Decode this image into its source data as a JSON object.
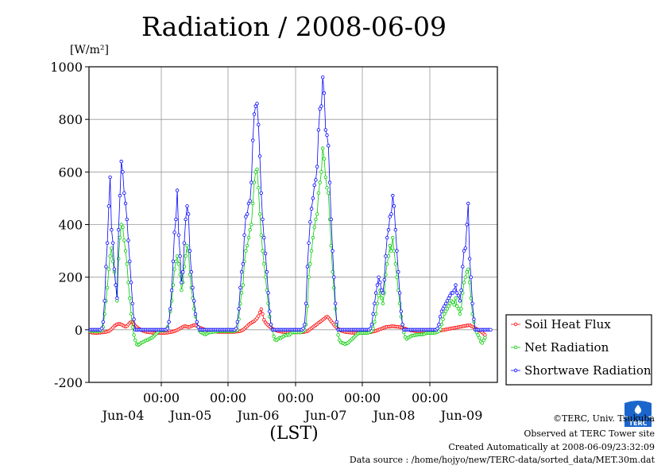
{
  "title": "Radiation / 2008-06-09",
  "unit_label": "[W/m²]",
  "x_axis_label": "(LST)",
  "credits": {
    "copyright": "©TERC, Univ. Tsukuba",
    "site": "Observed at TERC Tower site",
    "created": "Created Automatically at 2008-06-09/23:32:09",
    "source": "Data source : /home/hojyo/new/TERC-data/sorted_data/MET.30m.dat"
  },
  "logo_text": "TERC",
  "chart_data": {
    "type": "line",
    "title": "Radiation / 2008-06-09",
    "ylabel": "[W/m²]",
    "xlabel": "(LST)",
    "ylim": [
      -200,
      1000
    ],
    "y_ticks": [
      -200,
      0,
      200,
      400,
      600,
      800,
      1000
    ],
    "x_ticks": [
      "00:00",
      "00:00",
      "00:00",
      "00:00",
      "00:00",
      "00:00"
    ],
    "day_labels": [
      "Jun-04",
      "Jun-05",
      "Jun-06",
      "Jun-07",
      "Jun-08",
      "Jun-09"
    ],
    "grid": true,
    "legend_position": "right",
    "series": [
      {
        "name": "Soil Heat Flux",
        "color": "#ff0000",
        "days": [
          [
            -10,
            -11,
            -11,
            -12,
            -12,
            -12,
            -11,
            -11,
            -10,
            -10,
            -9,
            -8,
            -7,
            -5,
            -2,
            3,
            8,
            14,
            18,
            21,
            22,
            22,
            20,
            17,
            14,
            12,
            14,
            20,
            26,
            30,
            28,
            22,
            15,
            10,
            6,
            3,
            0,
            -3,
            -5,
            -7,
            -8,
            -9,
            -10,
            -10,
            -11,
            -11,
            -12,
            -12
          ],
          [
            -12,
            -12,
            -12,
            -12,
            -12,
            -12,
            -11,
            -11,
            -10,
            -9,
            -8,
            -7,
            -5,
            -3,
            -1,
            2,
            5,
            8,
            11,
            13,
            13,
            12,
            10,
            11,
            14,
            16,
            18,
            17,
            14,
            11,
            8,
            6,
            4,
            2,
            0,
            -1,
            -2,
            -3,
            -4,
            -5,
            -6,
            -7,
            -7,
            -8,
            -8,
            -8,
            -8,
            -8
          ],
          [
            -8,
            -8,
            -8,
            -8,
            -8,
            -8,
            -8,
            -8,
            -7,
            -7,
            -6,
            -5,
            -3,
            0,
            4,
            9,
            14,
            19,
            23,
            27,
            30,
            33,
            38,
            44,
            52,
            66,
            78,
            60,
            38,
            28,
            22,
            17,
            12,
            8,
            4,
            1,
            -1,
            -3,
            -5,
            -6,
            -7,
            -8,
            -8,
            -9,
            -9,
            -10,
            -10,
            -10
          ],
          [
            -10,
            -10,
            -10,
            -10,
            -10,
            -10,
            -10,
            -9,
            -9,
            -8,
            -7,
            -5,
            -2,
            2,
            6,
            10,
            14,
            18,
            22,
            26,
            30,
            34,
            38,
            42,
            47,
            50,
            46,
            40,
            33,
            26,
            19,
            13,
            8,
            4,
            0,
            -3,
            -5,
            -7,
            -8,
            -9,
            -10,
            -10,
            -11,
            -11,
            -11,
            -11,
            -11,
            -11
          ],
          [
            -11,
            -11,
            -11,
            -11,
            -11,
            -11,
            -10,
            -10,
            -9,
            -8,
            -7,
            -6,
            -4,
            -2,
            0,
            2,
            4,
            6,
            8,
            10,
            11,
            12,
            12,
            13,
            13,
            13,
            12,
            12,
            11,
            10,
            9,
            8,
            6,
            4,
            2,
            0,
            -1,
            -2,
            -3,
            -4,
            -5,
            -5,
            -6,
            -6,
            -6,
            -6,
            -6,
            -6
          ],
          [
            -6,
            -6,
            -6,
            -6,
            -6,
            -6,
            -6,
            -5,
            -5,
            -4,
            -3,
            -2,
            -1,
            0,
            1,
            2,
            3,
            4,
            5,
            6,
            7,
            8,
            9,
            10,
            11,
            12,
            13,
            14,
            15,
            16,
            17,
            18,
            15,
            12,
            9,
            6,
            3,
            0,
            -3,
            -6,
            -10,
            -15,
            -20
          ]
        ]
      },
      {
        "name": "Net Radiation",
        "color": "#00cc00",
        "days": [
          [
            -5,
            -5,
            -5,
            -5,
            -5,
            -5,
            -5,
            -5,
            -3,
            10,
            60,
            110,
            160,
            230,
            280,
            310,
            260,
            220,
            170,
            110,
            270,
            350,
            400,
            390,
            340,
            300,
            250,
            180,
            120,
            60,
            10,
            -20,
            -40,
            -55,
            -58,
            -55,
            -50,
            -48,
            -45,
            -42,
            -40,
            -38,
            -35,
            -32,
            -30,
            -25,
            -20,
            -15
          ],
          [
            -10,
            -5,
            -3,
            -2,
            -2,
            -2,
            0,
            10,
            30,
            70,
            110,
            170,
            230,
            260,
            280,
            250,
            210,
            150,
            180,
            240,
            280,
            320,
            300,
            210,
            160,
            120,
            80,
            50,
            30,
            10,
            -5,
            -10,
            -12,
            -15,
            -18,
            -15,
            -12,
            -10,
            -10,
            -8,
            -8,
            -7,
            -6,
            -6,
            -5,
            -5,
            -5,
            -5
          ],
          [
            -5,
            -5,
            -5,
            -5,
            -5,
            -5,
            -5,
            -4,
            -3,
            0,
            40,
            100,
            140,
            170,
            260,
            300,
            320,
            350,
            380,
            400,
            480,
            560,
            600,
            610,
            540,
            440,
            360,
            300,
            250,
            200,
            150,
            100,
            50,
            20,
            0,
            -25,
            -38,
            -40,
            -35,
            -30,
            -32,
            -28,
            -25,
            -20,
            -22,
            -18,
            -20,
            -15
          ],
          [
            -10,
            -10,
            -10,
            -10,
            -10,
            -10,
            -10,
            -8,
            -5,
            0,
            20,
            90,
            200,
            250,
            300,
            350,
            390,
            420,
            440,
            520,
            560,
            600,
            690,
            650,
            580,
            540,
            520,
            420,
            320,
            220,
            160,
            80,
            20,
            -20,
            -40,
            -48,
            -50,
            -52,
            -55,
            -52,
            -50,
            -45,
            -40,
            -35,
            -30,
            -25,
            -20,
            -15
          ],
          [
            -12,
            -12,
            -12,
            -12,
            -12,
            -12,
            -12,
            -10,
            -8,
            -5,
            5,
            30,
            60,
            100,
            130,
            150,
            120,
            100,
            140,
            210,
            250,
            280,
            320,
            300,
            350,
            300,
            250,
            200,
            150,
            100,
            50,
            20,
            -10,
            -28,
            -35,
            -30,
            -28,
            -25,
            -22,
            -22,
            -20,
            -20,
            -18,
            -18,
            -18,
            -17,
            -17,
            -16
          ],
          [
            -12,
            -12,
            -12,
            -12,
            -12,
            -12,
            -12,
            -10,
            -8,
            -5,
            2,
            20,
            40,
            60,
            70,
            80,
            90,
            100,
            110,
            105,
            95,
            120,
            90,
            80,
            60,
            80,
            140,
            180,
            200,
            220,
            230,
            180,
            120,
            60,
            30,
            0,
            -10,
            -20,
            -30,
            -45,
            -50,
            -40,
            -30
          ]
        ]
      },
      {
        "name": "Shortwave Radiation",
        "color": "#0000ff",
        "days": [
          [
            0,
            0,
            0,
            0,
            0,
            0,
            0,
            0,
            5,
            30,
            110,
            240,
            330,
            470,
            580,
            380,
            330,
            230,
            170,
            120,
            380,
            510,
            640,
            600,
            520,
            480,
            420,
            340,
            260,
            180,
            100,
            40,
            0,
            0,
            0,
            0,
            0,
            0,
            0,
            0,
            0,
            0,
            0,
            0,
            0,
            0,
            0,
            0
          ],
          [
            0,
            0,
            0,
            0,
            0,
            0,
            0,
            5,
            30,
            80,
            150,
            260,
            370,
            420,
            530,
            360,
            280,
            180,
            220,
            330,
            420,
            470,
            440,
            300,
            220,
            160,
            110,
            60,
            30,
            10,
            0,
            0,
            0,
            0,
            0,
            0,
            0,
            0,
            0,
            0,
            0,
            0,
            0,
            0,
            0,
            0,
            0,
            0
          ],
          [
            0,
            0,
            0,
            0,
            0,
            0,
            0,
            0,
            5,
            30,
            80,
            160,
            220,
            250,
            360,
            430,
            440,
            480,
            490,
            560,
            720,
            820,
            850,
            860,
            780,
            660,
            520,
            420,
            350,
            290,
            220,
            140,
            70,
            20,
            0,
            0,
            0,
            0,
            0,
            0,
            0,
            0,
            0,
            0,
            0,
            0,
            0,
            0
          ],
          [
            0,
            0,
            0,
            0,
            0,
            0,
            0,
            0,
            5,
            20,
            100,
            240,
            330,
            410,
            460,
            500,
            550,
            570,
            620,
            760,
            840,
            850,
            960,
            900,
            760,
            740,
            700,
            560,
            420,
            300,
            200,
            100,
            30,
            0,
            0,
            0,
            0,
            0,
            0,
            0,
            0,
            0,
            0,
            0,
            0,
            0,
            0,
            0
          ],
          [
            0,
            0,
            0,
            0,
            0,
            0,
            0,
            0,
            5,
            20,
            60,
            100,
            140,
            170,
            200,
            180,
            150,
            140,
            190,
            280,
            350,
            380,
            430,
            440,
            510,
            470,
            380,
            300,
            220,
            140,
            70,
            20,
            0,
            0,
            0,
            0,
            0,
            0,
            0,
            0,
            0,
            0,
            0,
            0,
            0,
            0,
            0,
            0
          ],
          [
            0,
            0,
            0,
            0,
            0,
            0,
            0,
            0,
            5,
            20,
            50,
            70,
            80,
            90,
            100,
            110,
            120,
            130,
            140,
            140,
            150,
            170,
            140,
            130,
            110,
            150,
            240,
            300,
            310,
            400,
            480,
            270,
            200,
            100,
            40,
            0,
            0,
            0,
            0,
            0,
            0,
            0,
            0,
            0,
            0,
            0,
            0
          ]
        ]
      }
    ]
  }
}
